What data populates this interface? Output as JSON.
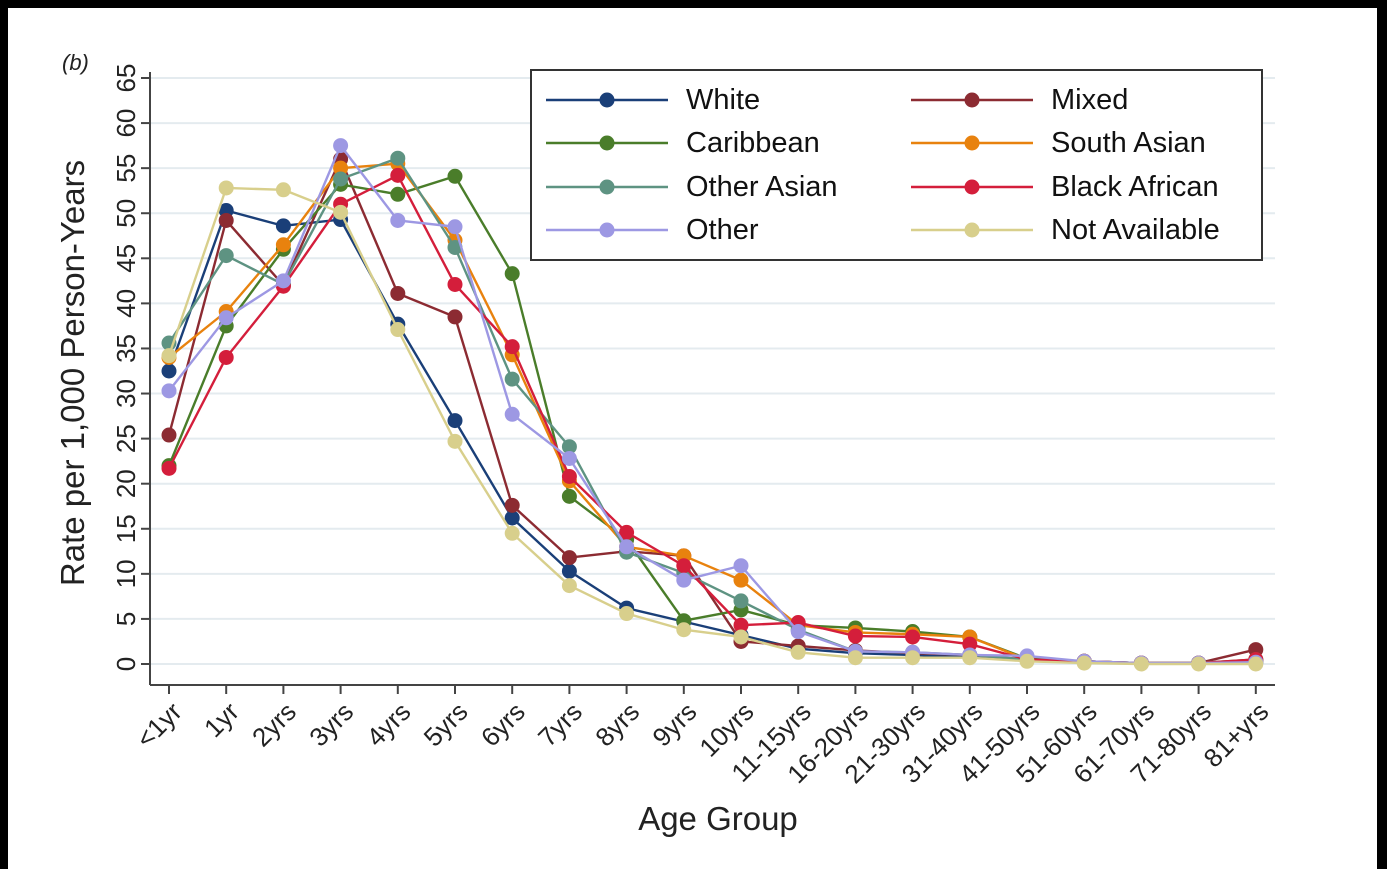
{
  "chart_data": {
    "type": "line",
    "panel_label": "(b)",
    "xlabel": "Age Group",
    "ylabel": "Rate per 1,000 Person-Years",
    "ylim": [
      0,
      65
    ],
    "yticks": [
      "0",
      "5",
      "10",
      "15",
      "20",
      "25",
      "30",
      "35",
      "40",
      "45",
      "50",
      "55",
      "60",
      "65"
    ],
    "grid": "horizontal",
    "legend_position": "top-right",
    "categories": [
      "<1yr",
      "1yr",
      "2yrs",
      "3yrs",
      "4yrs",
      "5yrs",
      "6yrs",
      "7yrs",
      "8yrs",
      "9yrs",
      "10yrs",
      "11-15yrs",
      "16-20yrs",
      "21-30yrs",
      "31-40yrs",
      "41-50yrs",
      "51-60yrs",
      "61-70yrs",
      "71-80yrs",
      "81+yrs"
    ],
    "series": [
      {
        "name": "White",
        "color": "#1a3f78",
        "values": [
          32.5,
          50.3,
          48.6,
          49.3,
          37.7,
          27.0,
          16.2,
          10.3,
          6.2,
          4.7,
          3.2,
          1.7,
          1.2,
          1.0,
          0.8,
          0.5,
          0.3,
          0.1,
          0.1,
          0.2
        ]
      },
      {
        "name": "Mixed",
        "color": "#8c2b32",
        "values": [
          25.4,
          49.2,
          42.0,
          56.0,
          41.1,
          38.5,
          17.6,
          11.8,
          12.5,
          12.0,
          2.5,
          2.0,
          1.5,
          1.2,
          1.0,
          0.5,
          0.3,
          0.1,
          0.1,
          1.6
        ]
      },
      {
        "name": "Caribbean",
        "color": "#4a7d2a",
        "values": [
          22.0,
          37.5,
          46.0,
          53.2,
          52.1,
          54.1,
          43.3,
          18.6,
          13.8,
          4.8,
          6.0,
          4.3,
          4.0,
          3.6,
          3.0,
          0.6,
          0.3,
          0.1,
          0.1,
          0.5
        ]
      },
      {
        "name": "South Asian",
        "color": "#e8820e",
        "values": [
          34.0,
          39.1,
          46.5,
          55.0,
          55.5,
          47.0,
          34.3,
          20.3,
          13.0,
          12.0,
          9.3,
          4.3,
          3.5,
          3.3,
          3.0,
          0.5,
          0.3,
          0.1,
          0.1,
          0.4
        ]
      },
      {
        "name": "Other Asian",
        "color": "#5e9382",
        "values": [
          35.6,
          45.3,
          42.1,
          53.8,
          56.1,
          46.2,
          31.6,
          24.1,
          12.4,
          10.1,
          7.0,
          3.8,
          1.4,
          1.3,
          1.0,
          0.5,
          0.3,
          0.1,
          0.1,
          0.3
        ]
      },
      {
        "name": "Black African",
        "color": "#d41e3b",
        "values": [
          21.7,
          34.0,
          41.9,
          51.0,
          54.2,
          42.1,
          35.2,
          20.8,
          14.6,
          10.9,
          4.3,
          4.6,
          3.1,
          3.0,
          2.2,
          0.5,
          0.3,
          0.1,
          0.1,
          0.5
        ]
      },
      {
        "name": "Other",
        "color": "#9d98e3",
        "values": [
          30.3,
          38.4,
          42.5,
          57.5,
          49.2,
          48.5,
          27.7,
          22.8,
          13.0,
          9.3,
          10.9,
          3.6,
          1.4,
          1.3,
          1.0,
          0.9,
          0.3,
          0.1,
          0.1,
          0.2
        ]
      },
      {
        "name": "Not Available",
        "color": "#d8cf8c",
        "values": [
          34.2,
          52.8,
          52.6,
          50.1,
          37.1,
          24.7,
          14.5,
          8.7,
          5.6,
          3.8,
          3.0,
          1.3,
          0.7,
          0.7,
          0.7,
          0.3,
          0.1,
          0.0,
          0.0,
          0.0
        ]
      }
    ]
  }
}
